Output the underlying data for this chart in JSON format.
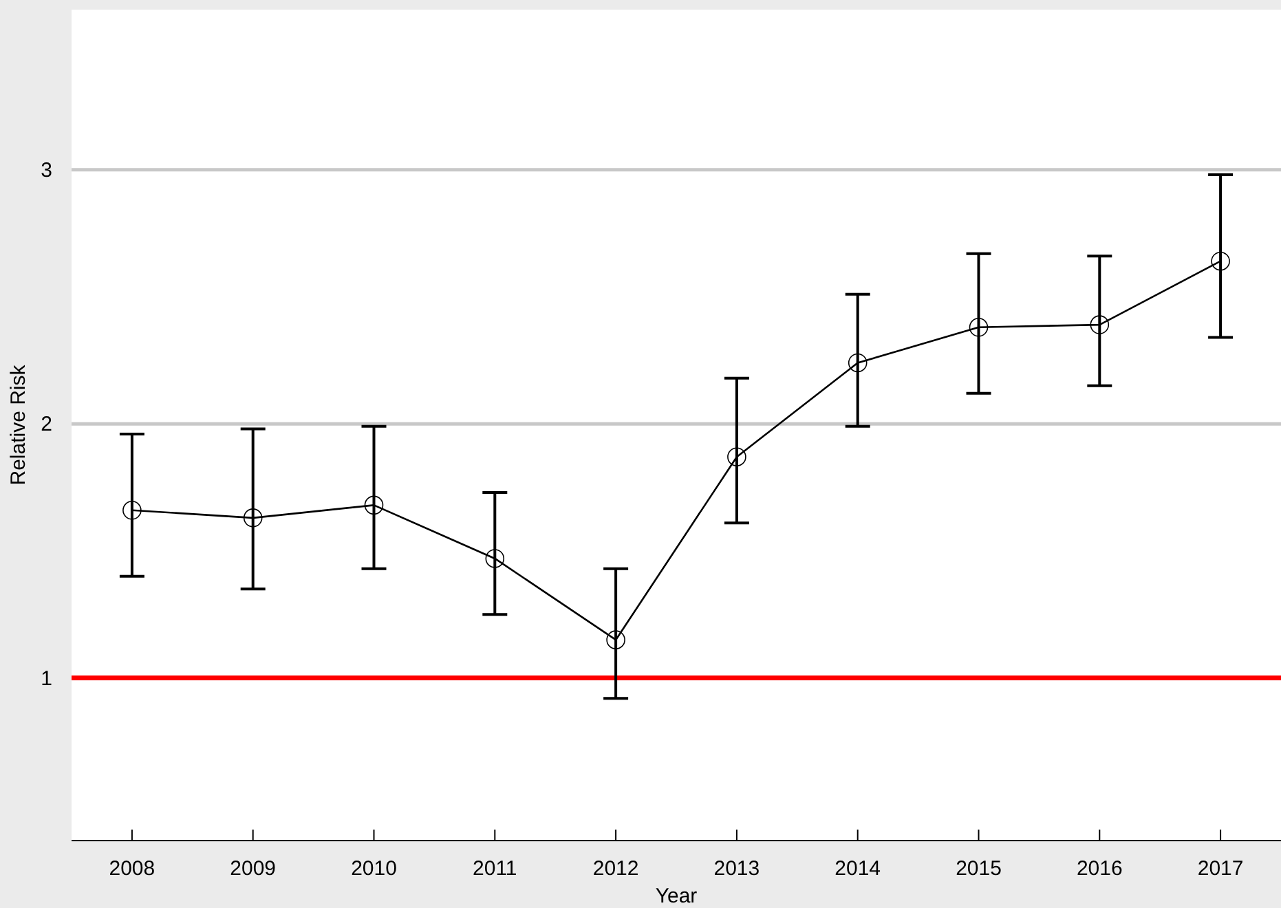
{
  "chart_data": {
    "type": "line",
    "xlabel": "Year",
    "ylabel": "Relative Risk",
    "categories": [
      "2008",
      "2009",
      "2010",
      "2011",
      "2012",
      "2013",
      "2014",
      "2015",
      "2016",
      "2017"
    ],
    "series": [
      {
        "color": "#000000",
        "values": [
          1.66,
          1.63,
          1.68,
          1.47,
          1.15,
          1.87,
          2.24,
          2.38,
          2.39,
          2.64
        ],
        "errors": [
          [
            1.4,
            1.96
          ],
          [
            1.35,
            1.98
          ],
          [
            1.43,
            1.99
          ],
          [
            1.25,
            1.73
          ],
          [
            0.92,
            1.43
          ],
          [
            1.61,
            2.18
          ],
          [
            1.99,
            2.51
          ],
          [
            2.12,
            2.67
          ],
          [
            2.15,
            2.66
          ],
          [
            2.34,
            2.98
          ]
        ]
      }
    ],
    "ylim": [
      0.36,
      3.63
    ],
    "yticks": [
      1,
      2,
      3
    ],
    "grid": "y",
    "marker": "circle",
    "line_style": "solid",
    "ref_lines": [
      {
        "axis": "y",
        "value": 1,
        "color": "#ff0000"
      }
    ]
  }
}
